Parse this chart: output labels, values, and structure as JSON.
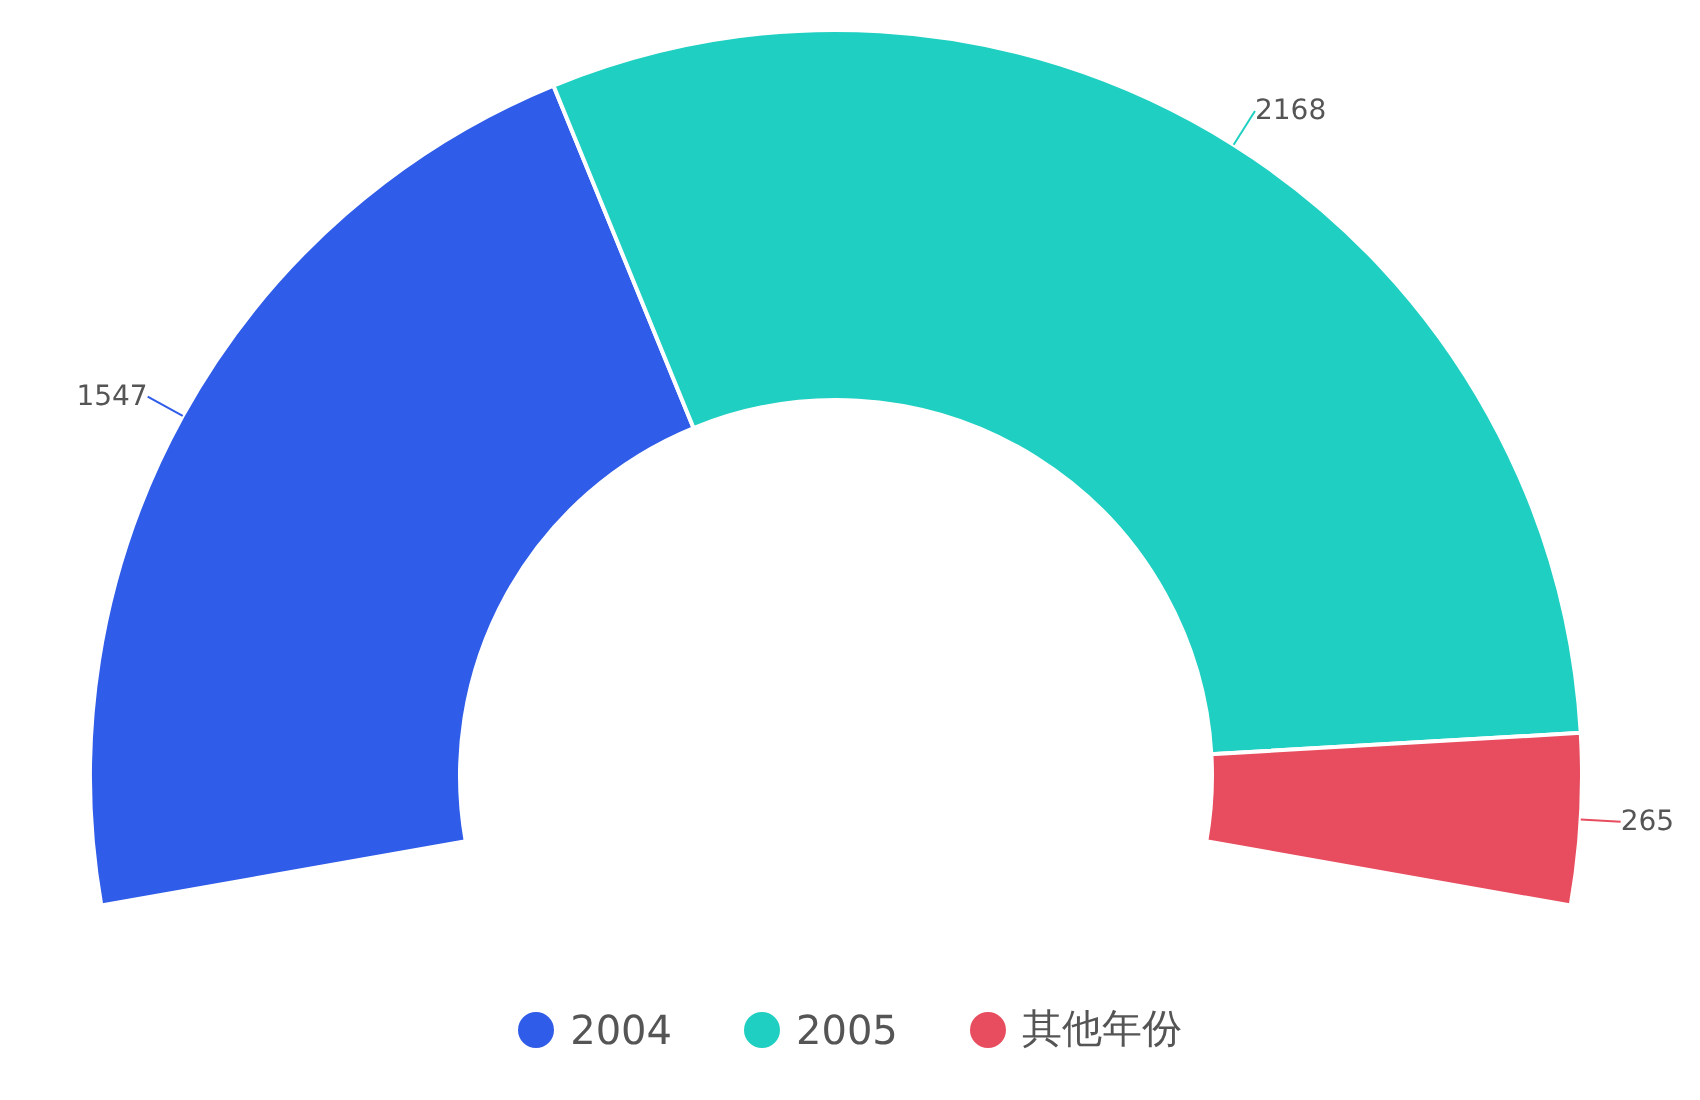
{
  "chart_data": {
    "type": "donut",
    "categories": [
      "2004",
      "2005",
      "其他年份"
    ],
    "values": [
      1547,
      2168,
      265
    ],
    "colors": [
      "#2f5ce8",
      "#1fcfc1",
      "#e84d5f"
    ],
    "data_labels": true,
    "legend": "bottom"
  }
}
